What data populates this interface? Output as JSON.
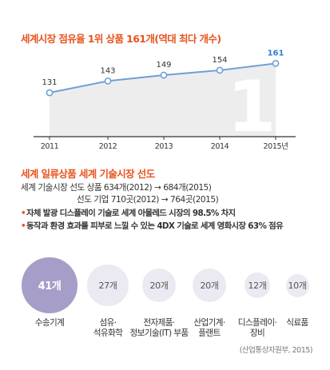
{
  "chart_data": {
    "type": "line",
    "title": "세계시장 점유율 1위 상품 161개(역대 최다 개수)",
    "categories": [
      "2011",
      "2012",
      "2013",
      "2014",
      "2015년"
    ],
    "values": [
      131,
      143,
      149,
      154,
      161
    ],
    "data_labels": [
      "131",
      "143",
      "149",
      "154",
      "161"
    ],
    "xlabel": "",
    "ylabel": "",
    "grid": false,
    "background_glyph": "1",
    "colors": {
      "line": "#6f9fd6",
      "area": "#ededee",
      "last_label": "#2f7fd0",
      "axis": "#333333",
      "glyph": "#ffffff"
    }
  },
  "section2": {
    "title": "세계 일류상품 세계 기술시장 선도",
    "line1": "세계 기술시장 선도 상품 634개(2012) → 684개(2015)",
    "line2": "선도 기업 710곳(2012) → 764곳(2015)",
    "bullet1": "자체 발광 디스플레이 기술로 세계 아몰레드 시장의 98.5% 차지",
    "bullet2": "동작과 환경 효과를 피부로 느낄 수 있는 4DX 기술로 세계 영화시장 63% 점유",
    "bullet_mark": "•"
  },
  "bubbles": [
    {
      "value": "41개",
      "label": "수송기계",
      "count": 41,
      "color": "#a69ec8",
      "text_color": "#ffffff"
    },
    {
      "value": "27개",
      "label": "섬유·\n석유화학",
      "count": 27,
      "color": "#ebe9f1",
      "text_color": "#555555"
    },
    {
      "value": "20개",
      "label": "전자제품·\n정보기술(IT) 부품",
      "count": 20,
      "color": "#ebe9f1",
      "text_color": "#555555"
    },
    {
      "value": "20개",
      "label": "산업기계·\n플랜트",
      "count": 20,
      "color": "#ebe9f1",
      "text_color": "#555555"
    },
    {
      "value": "12개",
      "label": "디스플레이·\n장비",
      "count": 12,
      "color": "#ebe9f1",
      "text_color": "#555555"
    },
    {
      "value": "10개",
      "label": "식료품",
      "count": 10,
      "color": "#ebe9f1",
      "text_color": "#555555"
    }
  ],
  "source": "(산업통상자원부, 2015)"
}
